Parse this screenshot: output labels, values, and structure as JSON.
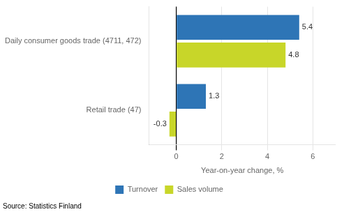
{
  "chart_data": {
    "type": "bar",
    "orientation": "horizontal",
    "categories": [
      "Daily consumer goods trade (4711, 472)",
      "Retail trade (47)"
    ],
    "series": [
      {
        "name": "Turnover",
        "color": "#2E75B6",
        "values": [
          5.4,
          1.3
        ]
      },
      {
        "name": "Sales volume",
        "color": "#C8D629",
        "values": [
          4.8,
          -0.3
        ]
      }
    ],
    "xlabel": "Year-on-year change, %",
    "xlim": [
      -1.2,
      7.0
    ],
    "xticks": [
      0,
      2,
      4,
      6
    ],
    "grid": true,
    "legend": "bottom",
    "data_labels": true,
    "annotations": [
      "Source: Statistics Finland"
    ]
  }
}
